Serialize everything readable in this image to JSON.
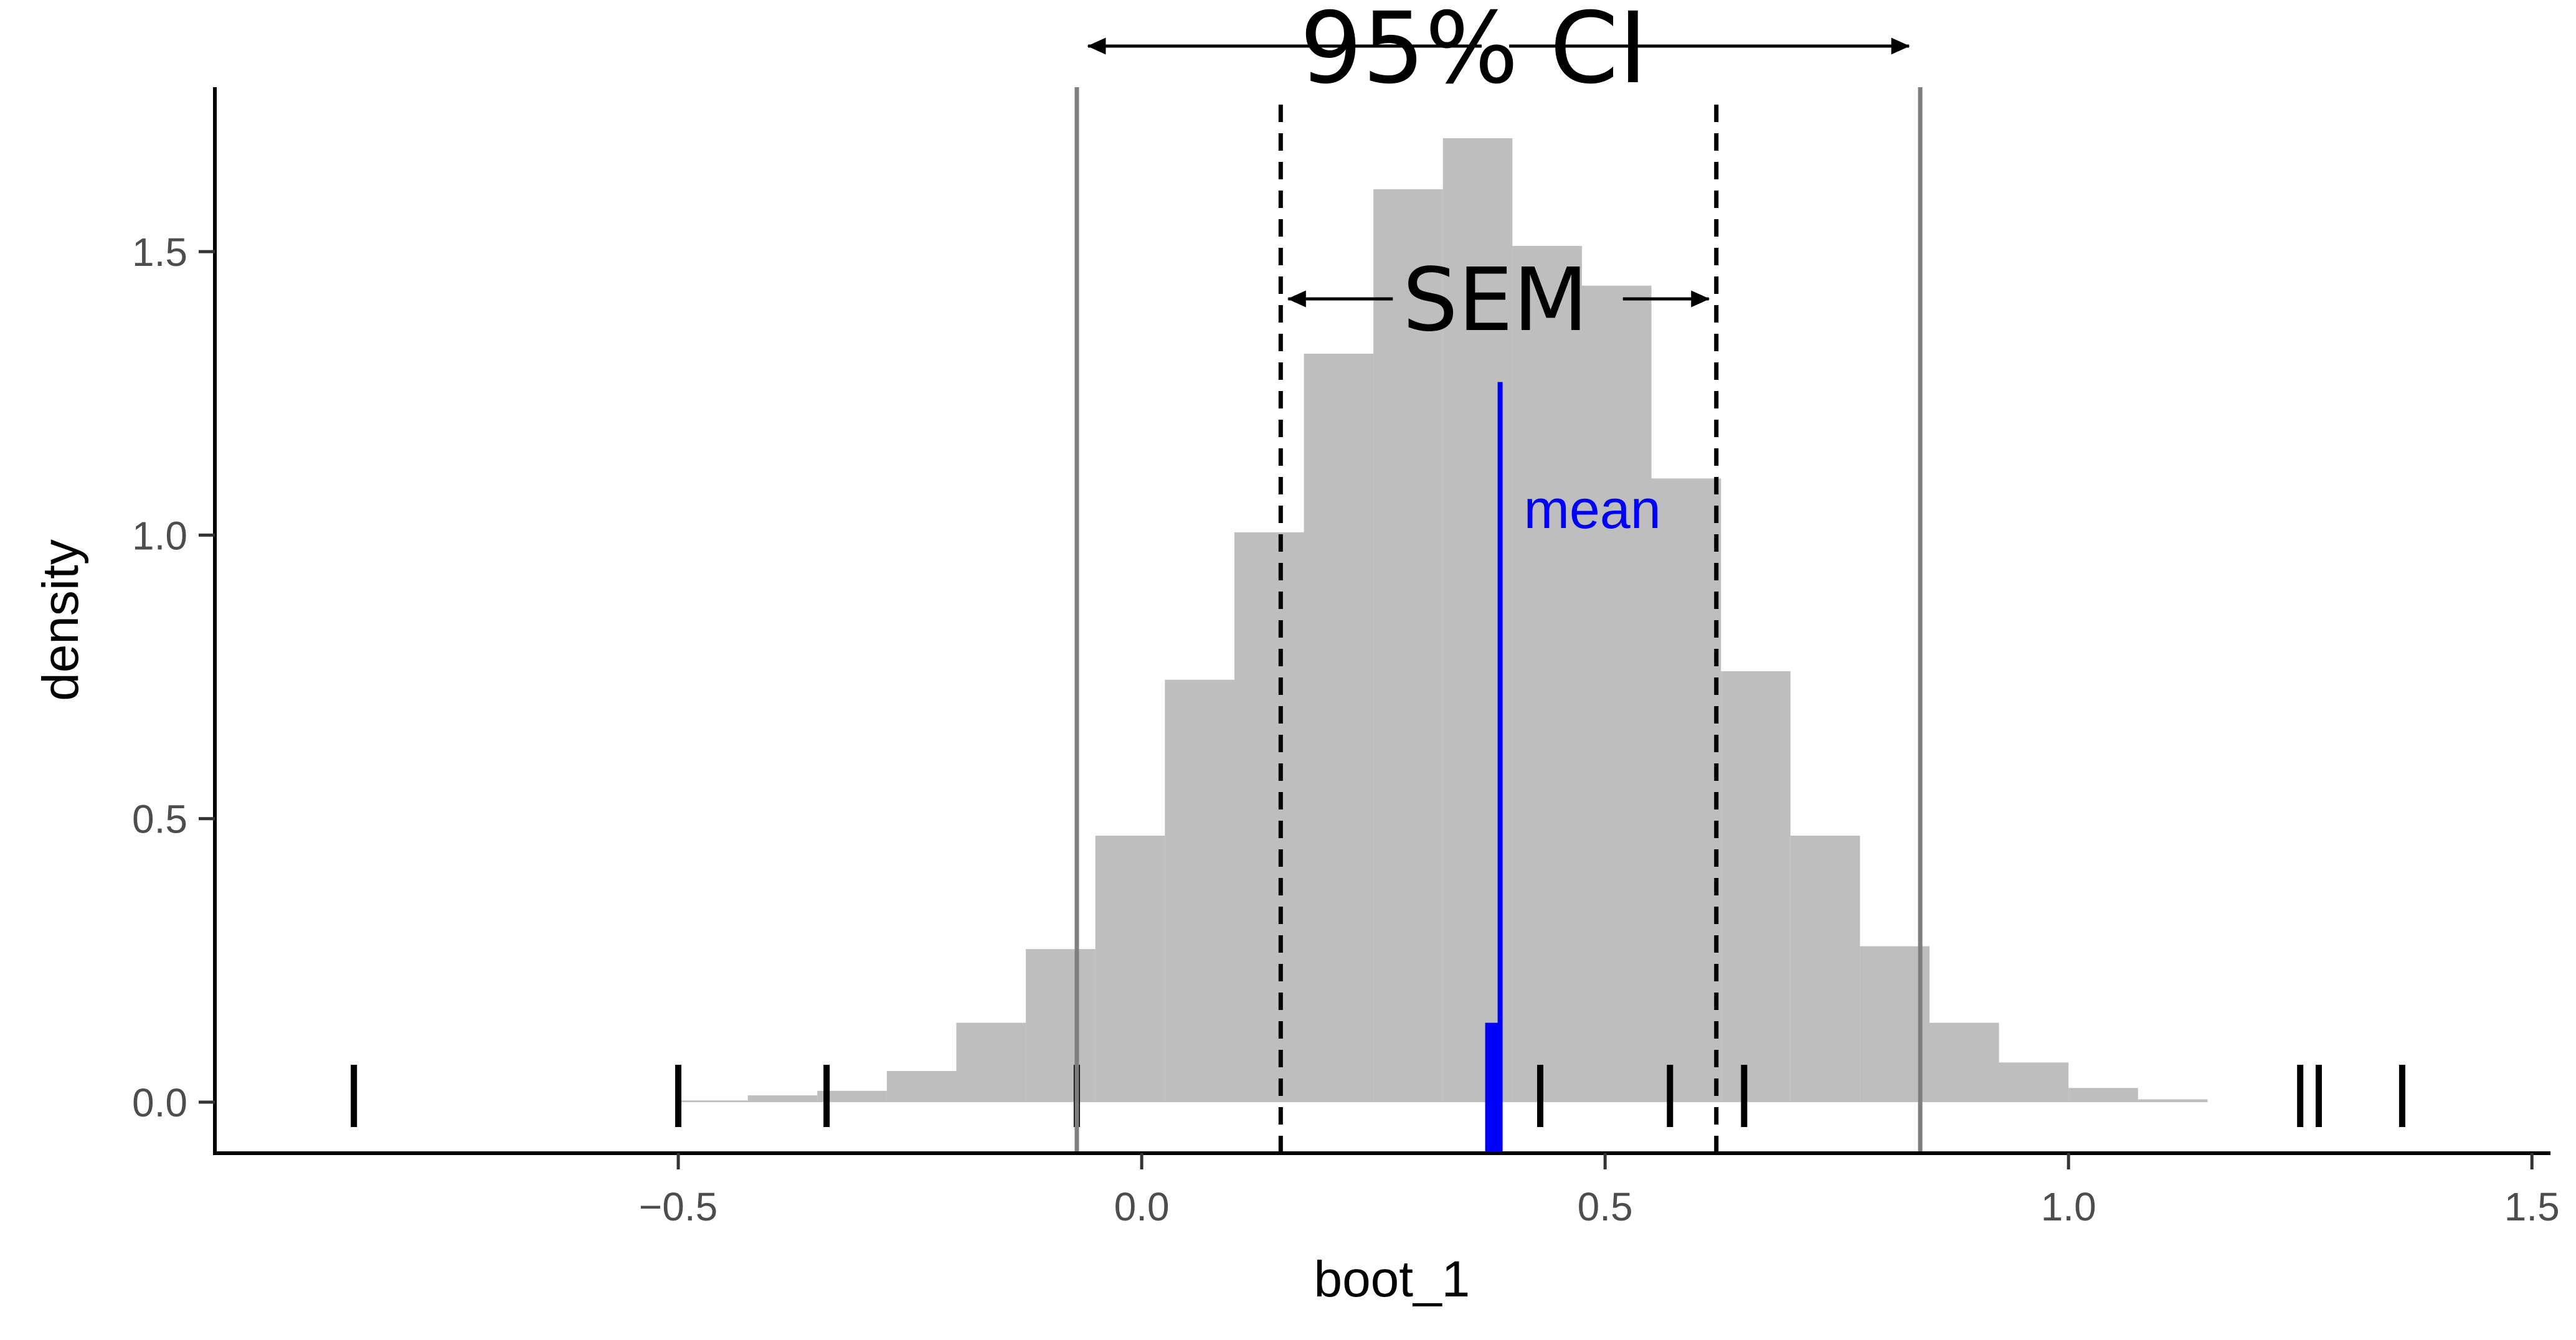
{
  "chart_data": {
    "type": "histogram",
    "xlabel": "boot_1",
    "ylabel": "density",
    "xlim": [
      -1.0,
      1.52
    ],
    "ylim": [
      -0.09,
      1.79
    ],
    "x_ticks": [
      {
        "value": -0.5,
        "label": "−0.5"
      },
      {
        "value": 0.0,
        "label": "0.0"
      },
      {
        "value": 0.5,
        "label": "0.5"
      },
      {
        "value": 1.0,
        "label": "1.0"
      },
      {
        "value": 1.5,
        "label": "1.5"
      }
    ],
    "y_ticks": [
      {
        "value": 0.0,
        "label": "0.0"
      },
      {
        "value": 0.5,
        "label": "0.5"
      },
      {
        "value": 1.0,
        "label": "1.0"
      },
      {
        "value": 1.5,
        "label": "1.5"
      }
    ],
    "bins": [
      {
        "x0": -0.5,
        "x1": -0.425,
        "density": 0.003
      },
      {
        "x0": -0.425,
        "x1": -0.35,
        "density": 0.012
      },
      {
        "x0": -0.35,
        "x1": -0.275,
        "density": 0.02
      },
      {
        "x0": -0.275,
        "x1": -0.2,
        "density": 0.055
      },
      {
        "x0": -0.2,
        "x1": -0.125,
        "density": 0.14
      },
      {
        "x0": -0.125,
        "x1": -0.05,
        "density": 0.27
      },
      {
        "x0": -0.05,
        "x1": 0.025,
        "density": 0.47
      },
      {
        "x0": 0.025,
        "x1": 0.1,
        "density": 0.745
      },
      {
        "x0": 0.1,
        "x1": 0.175,
        "density": 1.005
      },
      {
        "x0": 0.175,
        "x1": 0.25,
        "density": 1.32
      },
      {
        "x0": 0.25,
        "x1": 0.325,
        "density": 1.61
      },
      {
        "x0": 0.325,
        "x1": 0.4,
        "density": 1.7
      },
      {
        "x0": 0.4,
        "x1": 0.475,
        "density": 1.51
      },
      {
        "x0": 0.475,
        "x1": 0.55,
        "density": 1.44
      },
      {
        "x0": 0.55,
        "x1": 0.625,
        "density": 1.1
      },
      {
        "x0": 0.625,
        "x1": 0.7,
        "density": 0.76
      },
      {
        "x0": 0.7,
        "x1": 0.775,
        "density": 0.47
      },
      {
        "x0": 0.775,
        "x1": 0.85,
        "density": 0.275
      },
      {
        "x0": 0.85,
        "x1": 0.925,
        "density": 0.14
      },
      {
        "x0": 0.925,
        "x1": 1.0,
        "density": 0.07
      },
      {
        "x0": 1.0,
        "x1": 1.075,
        "density": 0.025
      },
      {
        "x0": 1.075,
        "x1": 1.15,
        "density": 0.005
      }
    ],
    "rug_points": [
      -0.85,
      -0.5,
      -0.34,
      -0.07,
      0.43,
      0.57,
      0.65,
      1.25,
      1.27,
      1.36
    ],
    "mean": 0.38,
    "mean_bar_density": 0.14,
    "mean_line_top_density": 1.27,
    "sem_bounds": [
      0.15,
      0.62
    ],
    "ci_bounds": [
      -0.07,
      0.84
    ],
    "annotations": {
      "ci_label": "95% CI",
      "sem_label": "SEM",
      "mean_label": "mean"
    },
    "colors": {
      "bars": "#bebebe",
      "ci_lines": "#7f7f7f",
      "sem_lines": "#000000",
      "mean": "#0000ff",
      "rug": "#000000",
      "axis": "#000000"
    }
  }
}
